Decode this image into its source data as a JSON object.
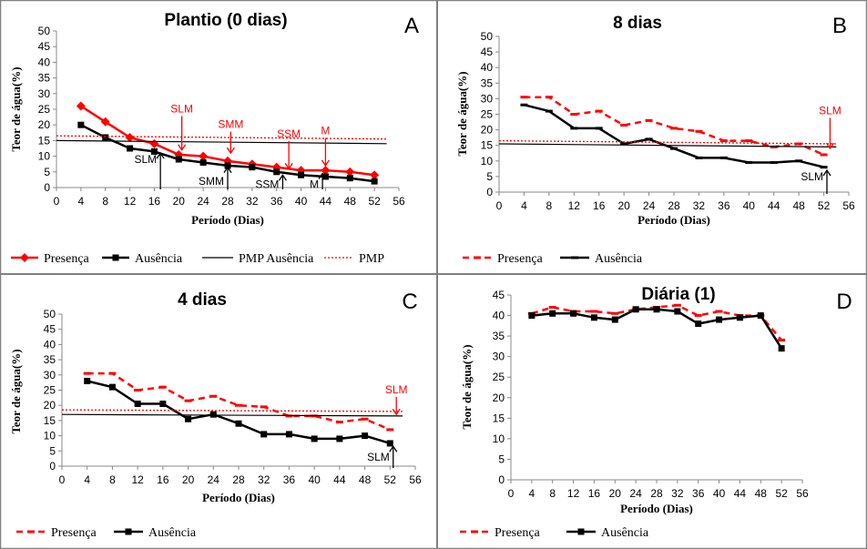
{
  "chart_data": [
    {
      "type": "line",
      "panel_letter": "A",
      "title": "Plantio (0 dias)",
      "xlabel": "Período (Dias)",
      "ylabel": "Teor de água(%)",
      "xlim": [
        0,
        56
      ],
      "ylim": [
        0,
        50
      ],
      "xticks": [
        0,
        4,
        8,
        12,
        16,
        20,
        24,
        28,
        32,
        36,
        40,
        44,
        48,
        52,
        56
      ],
      "yticks": [
        0,
        5,
        10,
        15,
        20,
        25,
        30,
        35,
        40,
        45,
        50
      ],
      "grid": false,
      "legend": "bottom",
      "series": [
        {
          "name": "Presença",
          "color": "#ff0000",
          "marker": "diamond",
          "dash": "solid",
          "x": [
            4,
            8,
            12,
            16,
            20,
            24,
            28,
            32,
            36,
            40,
            44,
            48,
            52
          ],
          "y": [
            26,
            21,
            16,
            14,
            10.5,
            10,
            8.5,
            7.5,
            6.5,
            5.5,
            5.5,
            5,
            4
          ]
        },
        {
          "name": "Ausência",
          "color": "#000000",
          "marker": "square",
          "dash": "solid",
          "x": [
            4,
            8,
            12,
            16,
            20,
            24,
            28,
            32,
            36,
            40,
            44,
            48,
            52
          ],
          "y": [
            20,
            16,
            12.5,
            11.5,
            9,
            8,
            7,
            6.5,
            5,
            4,
            3.5,
            3,
            2
          ]
        },
        {
          "name": "PMP Ausência",
          "color": "#000000",
          "marker": "none",
          "dash": "solid",
          "x": [
            0,
            54
          ],
          "y": [
            15,
            14
          ]
        },
        {
          "name": "PMP",
          "color": "#ff0000",
          "marker": "none",
          "dash": "dotted",
          "x": [
            0,
            54
          ],
          "y": [
            16.5,
            15.5
          ]
        }
      ],
      "annotations": [
        {
          "text": "SLM",
          "color": "#ff0000",
          "arrow": "down",
          "x": 20.5,
          "y": 12,
          "label_y": 24
        },
        {
          "text": "SMM",
          "color": "#ff0000",
          "arrow": "down",
          "x": 28.5,
          "y": 11,
          "label_y": 19
        },
        {
          "text": "SSM",
          "color": "#ff0000",
          "arrow": "down",
          "x": 38,
          "y": 6,
          "label_y": 16
        },
        {
          "text": "M",
          "color": "#ff0000",
          "arrow": "down",
          "x": 44,
          "y": 7,
          "label_y": 17
        },
        {
          "text": "SLM",
          "color": "#000000",
          "arrow": "up",
          "x": 17,
          "y": 11,
          "label_y": 9
        },
        {
          "text": "SMM",
          "color": "#000000",
          "arrow": "up",
          "x": 28,
          "y": 6.5,
          "label_y": 2
        },
        {
          "text": "SSM",
          "color": "#000000",
          "arrow": "up",
          "x": 37,
          "y": 4,
          "label_y": 1
        },
        {
          "text": "M",
          "color": "#000000",
          "arrow": "up",
          "x": 43.5,
          "y": 4.5,
          "label_y": 1
        }
      ]
    },
    {
      "type": "line",
      "panel_letter": "B",
      "title": "8 dias",
      "xlabel": "Período (Dias)",
      "ylabel": "Teor de água(%)",
      "xlim": [
        0,
        56
      ],
      "ylim": [
        0,
        50
      ],
      "xticks": [
        0,
        4,
        8,
        12,
        16,
        20,
        24,
        28,
        32,
        36,
        40,
        44,
        48,
        52,
        56
      ],
      "yticks": [
        0,
        5,
        10,
        15,
        20,
        25,
        30,
        35,
        40,
        45,
        50
      ],
      "grid": false,
      "legend": "bottom",
      "series": [
        {
          "name": "Presença",
          "color": "#ff0000",
          "marker": "dash",
          "dash": "dashed",
          "x": [
            4,
            8,
            12,
            16,
            20,
            24,
            28,
            32,
            36,
            40,
            44,
            48,
            52
          ],
          "y": [
            30.5,
            30.5,
            25,
            26,
            21.5,
            23,
            20.5,
            19.5,
            16.5,
            16.5,
            14.5,
            15.5,
            12
          ]
        },
        {
          "name": "Ausência",
          "color": "#000000",
          "marker": "dash",
          "dash": "solid",
          "x": [
            4,
            8,
            12,
            16,
            20,
            24,
            28,
            32,
            36,
            40,
            44,
            48,
            52
          ],
          "y": [
            28,
            26,
            20.5,
            20.5,
            15.5,
            17,
            14,
            11,
            11,
            9.5,
            9.5,
            10,
            8
          ]
        },
        {
          "name": "",
          "color": "#000000",
          "marker": "none",
          "dash": "solid",
          "x": [
            0,
            54
          ],
          "y": [
            15.5,
            14.5
          ]
        },
        {
          "name": "",
          "color": "#ff0000",
          "marker": "none",
          "dash": "dotted",
          "x": [
            0,
            54
          ],
          "y": [
            16.5,
            15.5
          ]
        }
      ],
      "annotations": [
        {
          "text": "SLM",
          "color": "#ff0000",
          "arrow": "down",
          "x": 53,
          "y": 14,
          "label_y": 25
        },
        {
          "text": "SLM",
          "color": "#000000",
          "arrow": "up",
          "x": 52.5,
          "y": 7,
          "label_y": 5
        }
      ]
    },
    {
      "type": "line",
      "panel_letter": "C",
      "title": "4 dias",
      "xlabel": "Período (Dias)",
      "ylabel": "Teor de água(%)",
      "xlim": [
        0,
        56
      ],
      "ylim": [
        0,
        50
      ],
      "xticks": [
        0,
        4,
        8,
        12,
        16,
        20,
        24,
        28,
        32,
        36,
        40,
        44,
        48,
        52,
        56
      ],
      "yticks": [
        0,
        5,
        10,
        15,
        20,
        25,
        30,
        35,
        40,
        45,
        50
      ],
      "grid": false,
      "legend": "bottom",
      "series": [
        {
          "name": "Presença",
          "color": "#ff0000",
          "marker": "dash",
          "dash": "dashed",
          "x": [
            4,
            8,
            12,
            16,
            20,
            24,
            28,
            32,
            36,
            40,
            44,
            48,
            52
          ],
          "y": [
            30.5,
            30.5,
            25,
            26,
            21.5,
            23,
            20,
            19.5,
            16.5,
            16.5,
            14.5,
            15.5,
            12
          ]
        },
        {
          "name": "Ausência",
          "color": "#000000",
          "marker": "square",
          "dash": "solid",
          "x": [
            4,
            8,
            12,
            16,
            20,
            24,
            28,
            32,
            36,
            40,
            44,
            48,
            52
          ],
          "y": [
            28,
            26,
            20.5,
            20.5,
            15.5,
            17,
            14,
            10.5,
            10.5,
            9,
            9,
            10,
            7.5
          ]
        },
        {
          "name": "",
          "color": "#000000",
          "marker": "none",
          "dash": "solid",
          "x": [
            0,
            54
          ],
          "y": [
            17,
            16.5
          ]
        },
        {
          "name": "",
          "color": "#ff0000",
          "marker": "none",
          "dash": "dotted",
          "x": [
            0,
            54
          ],
          "y": [
            18.5,
            18
          ]
        }
      ],
      "annotations": [
        {
          "text": "SLM",
          "color": "#ff0000",
          "arrow": "down",
          "x": 53,
          "y": 17,
          "label_y": 24
        },
        {
          "text": "SLM",
          "color": "#000000",
          "arrow": "up",
          "x": 52.5,
          "y": 6.5,
          "label_y": 3
        }
      ]
    },
    {
      "type": "line",
      "panel_letter": "D",
      "title": "Diária (1)",
      "xlabel": "Período (Dias)",
      "ylabel": "Teor de água(%)",
      "xlim": [
        0,
        56
      ],
      "ylim": [
        0,
        45
      ],
      "xticks": [
        0,
        4,
        8,
        12,
        16,
        20,
        24,
        28,
        32,
        36,
        40,
        44,
        48,
        52,
        56
      ],
      "yticks": [
        0,
        5,
        10,
        15,
        20,
        25,
        30,
        35,
        40,
        45
      ],
      "grid": false,
      "legend": "bottom",
      "series": [
        {
          "name": "Presença",
          "color": "#ff0000",
          "marker": "dash",
          "dash": "dashed",
          "x": [
            4,
            8,
            12,
            16,
            20,
            24,
            28,
            32,
            36,
            40,
            44,
            48,
            52
          ],
          "y": [
            40.5,
            42,
            41,
            41,
            40.5,
            41.5,
            42,
            42.5,
            40,
            41,
            40,
            40,
            34
          ]
        },
        {
          "name": "Ausência",
          "color": "#000000",
          "marker": "square",
          "dash": "solid",
          "x": [
            4,
            8,
            12,
            16,
            20,
            24,
            28,
            32,
            36,
            40,
            44,
            48,
            52
          ],
          "y": [
            40,
            40.5,
            40.5,
            39.5,
            39,
            41.5,
            41.5,
            41,
            38,
            39,
            39.5,
            40,
            32
          ]
        }
      ],
      "annotations": []
    }
  ]
}
